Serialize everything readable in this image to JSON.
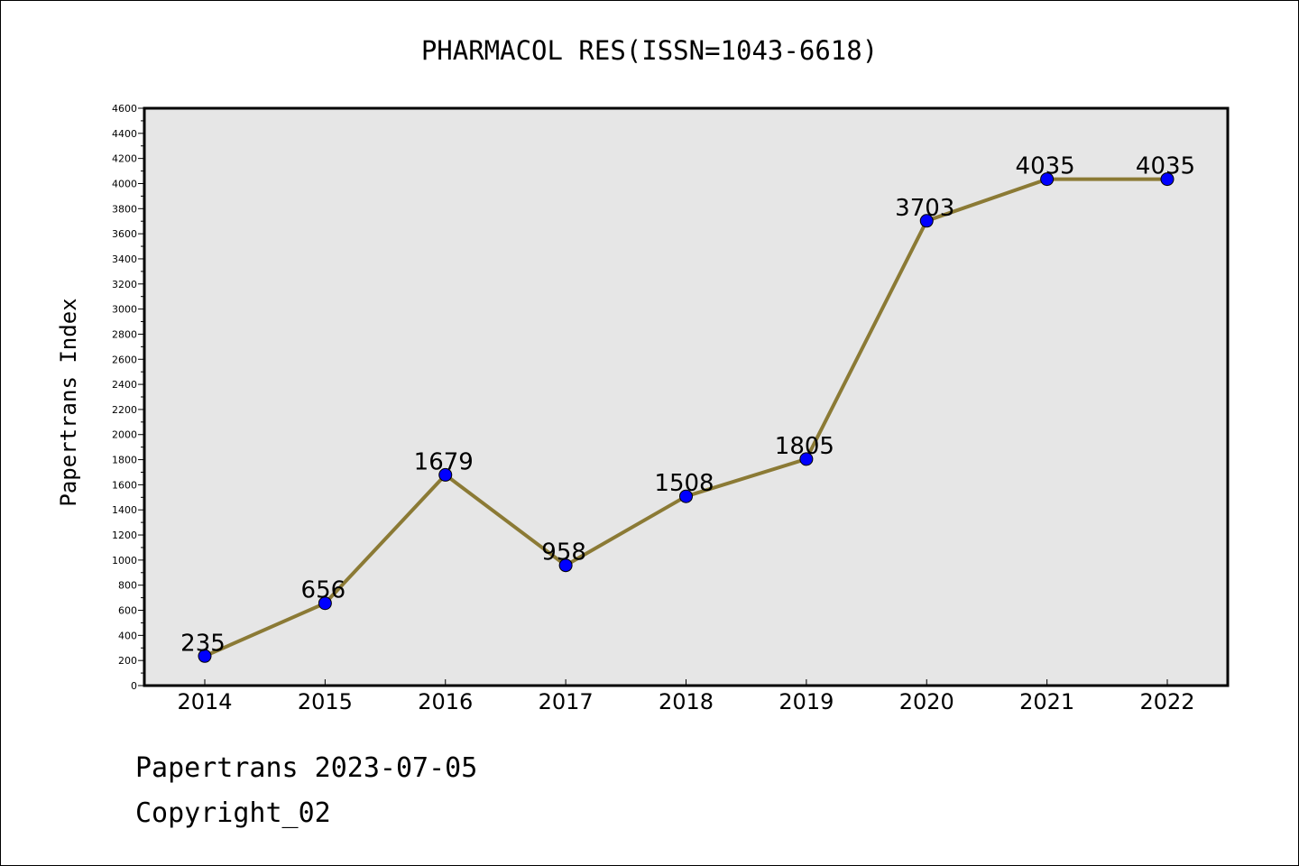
{
  "chart_data": {
    "type": "line",
    "title": "PHARMACOL RES(ISSN=1043-6618)",
    "xlabel": "",
    "ylabel": "Papertrans Index",
    "categories": [
      "2014",
      "2015",
      "2016",
      "2017",
      "2018",
      "2019",
      "2020",
      "2021",
      "2022"
    ],
    "values": [
      235,
      656,
      1679,
      958,
      1508,
      1805,
      3703,
      4035,
      4035
    ],
    "data_labels": [
      "235",
      "656",
      "1679",
      "958",
      "1508",
      "1805",
      "3703",
      "4035",
      "4035"
    ],
    "ylim": [
      0,
      4600
    ],
    "yticks": [
      "0",
      "200",
      "400",
      "600",
      "800",
      "1000",
      "1200",
      "1400",
      "1600",
      "1800",
      "2000",
      "2200",
      "2400",
      "2600",
      "2800",
      "3000",
      "3200",
      "3400",
      "3600",
      "3800",
      "4000",
      "4200",
      "4400",
      "4600"
    ],
    "grid": false,
    "legend": "none",
    "colors": {
      "line": "#8b7a35",
      "marker": "#0000ff",
      "plot_background": "#e6e6e6"
    }
  },
  "footer": {
    "line1": "Papertrans 2023-07-05",
    "line2": "Copyright_02"
  }
}
